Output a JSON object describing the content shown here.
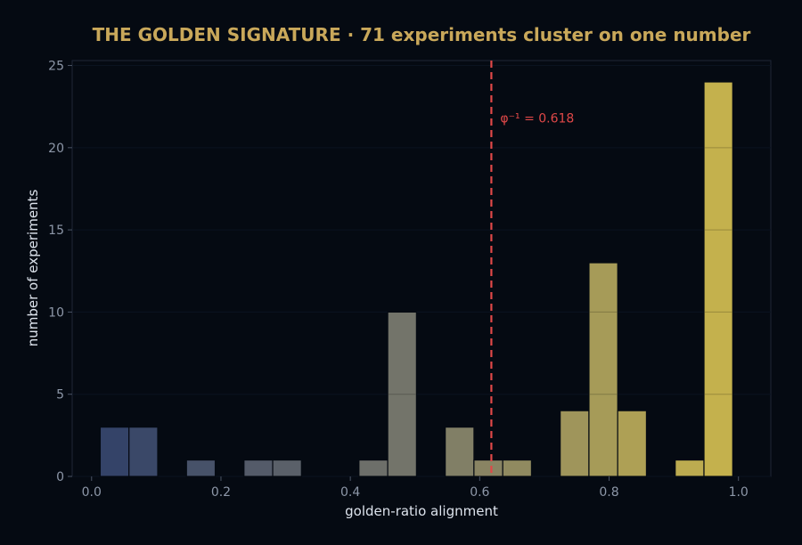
{
  "chart_data": {
    "type": "bar",
    "title": "THE GOLDEN SIGNATURE  ·  71 experiments cluster on one number",
    "xlabel": "golden-ratio alignment",
    "ylabel": "number of experiments",
    "xlim": [
      -0.03,
      1.05
    ],
    "ylim": [
      0,
      25.3
    ],
    "xticks": [
      "0.0",
      "0.2",
      "0.4",
      "0.6",
      "0.8",
      "1.0"
    ],
    "yticks": [
      "0",
      "5",
      "10",
      "15",
      "20",
      "25"
    ],
    "bin_width": 0.04444,
    "bins": [
      {
        "x0": 0.0133,
        "count": 3
      },
      {
        "x0": 0.0578,
        "count": 3
      },
      {
        "x0": 0.1467,
        "count": 1
      },
      {
        "x0": 0.2356,
        "count": 1
      },
      {
        "x0": 0.28,
        "count": 1
      },
      {
        "x0": 0.4133,
        "count": 1
      },
      {
        "x0": 0.4578,
        "count": 10
      },
      {
        "x0": 0.5467,
        "count": 3
      },
      {
        "x0": 0.5911,
        "count": 1
      },
      {
        "x0": 0.6356,
        "count": 1
      },
      {
        "x0": 0.7244,
        "count": 4
      },
      {
        "x0": 0.7689,
        "count": 13
      },
      {
        "x0": 0.8133,
        "count": 4
      },
      {
        "x0": 0.9022,
        "count": 1
      },
      {
        "x0": 0.9467,
        "count": 24
      }
    ],
    "reference_line": {
      "x": 0.618,
      "label": "φ⁻¹ = 0.618",
      "color": "#e04848"
    },
    "colors": {
      "background": "#050a12",
      "low": "#2f3f68",
      "mid": "#76766a",
      "high": "#c9b54b",
      "title": "#c9a85a"
    },
    "grid": false
  }
}
